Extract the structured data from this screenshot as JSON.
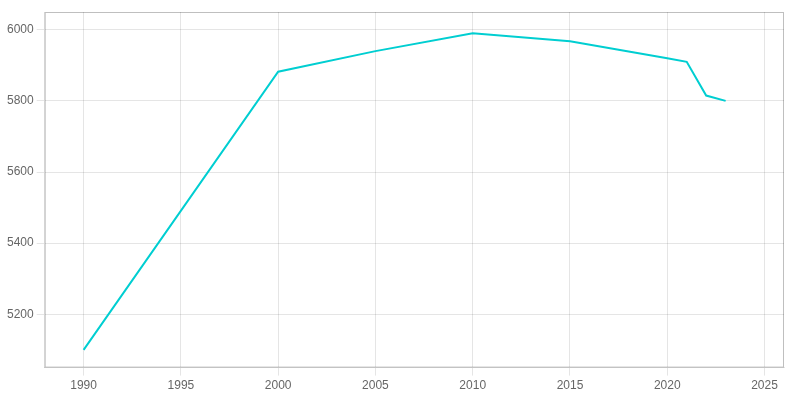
{
  "chart_data": {
    "type": "line",
    "x": [
      1990,
      2000,
      2005,
      2010,
      2015,
      2020,
      2021,
      2022,
      2023
    ],
    "values": [
      5100,
      5882,
      5940,
      5990,
      5968,
      5920,
      5910,
      5815,
      5800
    ],
    "color": "#00CED1",
    "xlim": [
      1988,
      2026
    ],
    "xticks": [
      1990,
      1995,
      2000,
      2005,
      2010,
      2015,
      2020,
      2025
    ],
    "ylim": [
      5050,
      6050
    ],
    "yticks": [
      5200,
      5400,
      5600,
      5800,
      6000
    ],
    "grid": true
  }
}
